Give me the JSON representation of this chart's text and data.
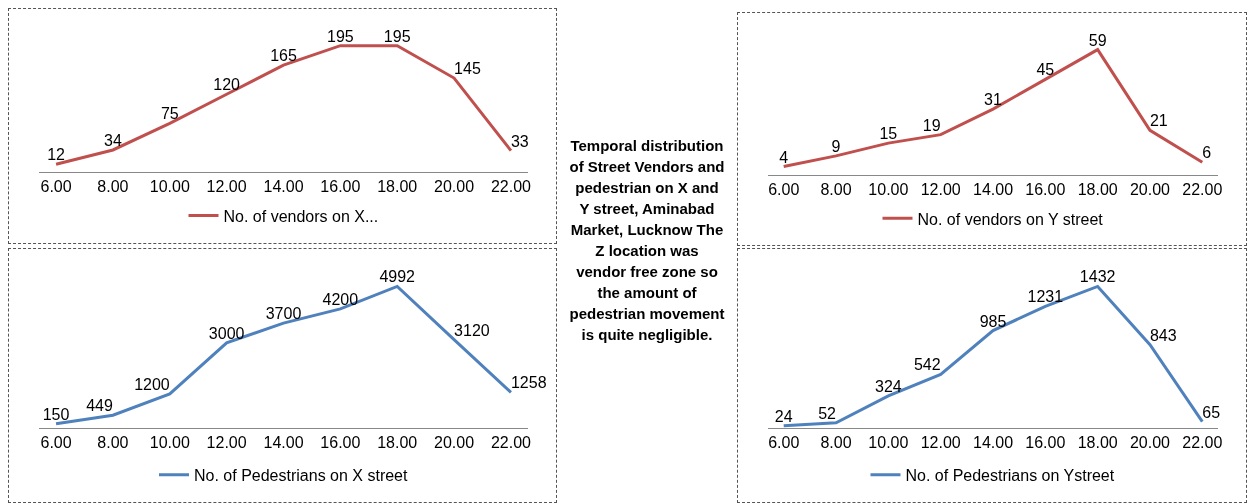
{
  "chart_data": [
    {
      "type": "line",
      "categories": [
        "6.00",
        "8.00",
        "10.00",
        "12.00",
        "14.00",
        "16.00",
        "18.00",
        "20.00",
        "22.00"
      ],
      "series": [
        {
          "name": "No. of vendors on X...",
          "color": "#c0504d",
          "values": [
            12,
            34,
            75,
            120,
            165,
            195,
            195,
            145,
            33
          ]
        }
      ],
      "data_labels": true,
      "legend": "bottom",
      "grid": false,
      "tick_labels": "x"
    },
    {
      "type": "other",
      "title": "Temporal distribution of Street Vendors and pedestrian on X and Y street, Aminabad Market, Lucknow The Z location was vendor free zone so the amount of pedestrian movement is quite negligible."
    },
    {
      "type": "line",
      "categories": [
        "6.00",
        "8.00",
        "10.00",
        "12.00",
        "14.00",
        "16.00",
        "18.00",
        "20.00",
        "22.00"
      ],
      "series": [
        {
          "name": "No. of vendors on Y street",
          "color": "#c0504d",
          "values": [
            4,
            9,
            15,
            19,
            31,
            45,
            59,
            21,
            6
          ]
        }
      ],
      "data_labels": true,
      "legend": "bottom",
      "grid": false,
      "tick_labels": "x"
    },
    {
      "type": "line",
      "categories": [
        "6.00",
        "8.00",
        "10.00",
        "12.00",
        "14.00",
        "16.00",
        "18.00",
        "20.00",
        "22.00"
      ],
      "series": [
        {
          "name": "No. of Pedestrians on X street",
          "color": "#4f81bd",
          "values": [
            150,
            449,
            1200,
            3000,
            3700,
            4200,
            4992,
            3120,
            1258
          ]
        }
      ],
      "data_labels": true,
      "legend": "bottom",
      "grid": false,
      "tick_labels": "x"
    },
    {
      "type": "line",
      "categories": [
        "6.00",
        "8.00",
        "10.00",
        "12.00",
        "14.00",
        "16.00",
        "18.00",
        "20.00",
        "22.00"
      ],
      "series": [
        {
          "name": "No. of Pedestrians on Ystreet",
          "color": "#4f81bd",
          "values": [
            24,
            52,
            324,
            542,
            985,
            1231,
            1432,
            843,
            65
          ]
        }
      ],
      "data_labels": true,
      "legend": "bottom",
      "grid": false,
      "tick_labels": "x"
    }
  ]
}
